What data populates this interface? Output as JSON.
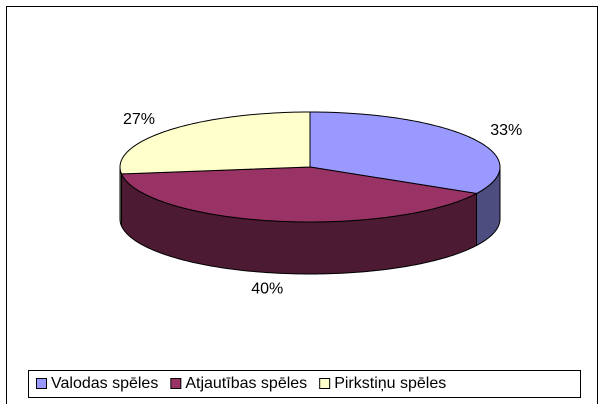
{
  "chart_data": {
    "type": "pie",
    "categories": [
      "Valodas spēles",
      "Atjautības spēles",
      "Pirkstiņu spēles"
    ],
    "values": [
      33,
      40,
      27
    ],
    "value_labels": [
      "33%",
      "40%",
      "27%"
    ],
    "colors": [
      "#9999ff",
      "#993366",
      "#ffffcc"
    ],
    "side_colors": [
      "#4d4d80",
      "#4d1a33",
      "#80806a"
    ],
    "legend": "bottom"
  }
}
